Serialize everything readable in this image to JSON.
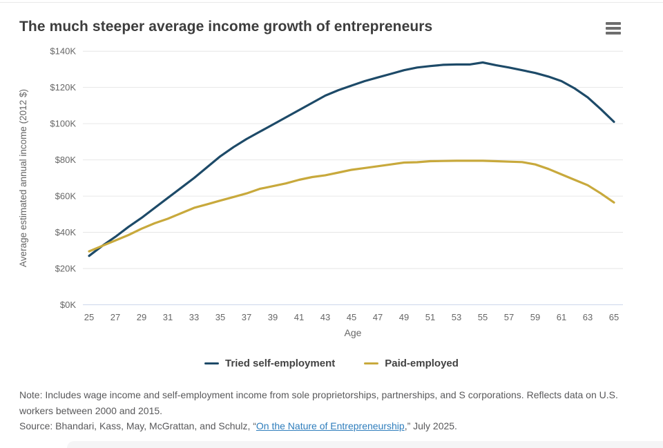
{
  "header": {
    "title": "The much steeper average income growth of entrepreneurs",
    "menu_icon": "hamburger-menu-icon"
  },
  "chart_data": {
    "type": "line",
    "title": "The much steeper average income growth of entrepreneurs",
    "xlabel": "Age",
    "ylabel": "Average estimated annual income (2012 $)",
    "xlim": [
      25,
      65
    ],
    "ylim_usd_thousands": [
      0,
      140
    ],
    "grid": "horizontal",
    "legend_position": "bottom",
    "x_ticks": [
      25,
      27,
      29,
      31,
      33,
      35,
      37,
      39,
      41,
      43,
      45,
      47,
      49,
      51,
      53,
      55,
      57,
      59,
      61,
      63,
      65
    ],
    "y_ticks_usd_thousands": [
      0,
      20,
      40,
      60,
      80,
      100,
      120,
      140
    ],
    "y_tick_prefix": "$",
    "y_tick_suffix": "K",
    "x": [
      25,
      26,
      27,
      28,
      29,
      30,
      31,
      32,
      33,
      34,
      35,
      36,
      37,
      38,
      39,
      40,
      41,
      42,
      43,
      44,
      45,
      46,
      47,
      48,
      49,
      50,
      51,
      52,
      53,
      54,
      55,
      56,
      57,
      58,
      59,
      60,
      61,
      62,
      63,
      64,
      65
    ],
    "series": [
      {
        "name": "Tried self-employment",
        "color": "#1d4a68",
        "values_usd_thousands": [
          27,
          32.5,
          37.5,
          43,
          48,
          53.5,
          59,
          64.5,
          70,
          76,
          82,
          87,
          91.5,
          95.5,
          99.5,
          103.5,
          107.5,
          111.5,
          115.5,
          118.5,
          121,
          123.5,
          125.5,
          127.5,
          129.5,
          131,
          131.8,
          132.5,
          132.7,
          132.7,
          133.8,
          132.3,
          131,
          129.5,
          128,
          126,
          123.5,
          119.5,
          114.5,
          108,
          101
        ]
      },
      {
        "name": "Paid-employed",
        "color": "#c8a93c",
        "values_usd_thousands": [
          29.5,
          32.5,
          35.5,
          38.5,
          42,
          45,
          47.5,
          50.5,
          53.5,
          55.5,
          57.5,
          59.5,
          61.5,
          64,
          65.5,
          67,
          69,
          70.5,
          71.5,
          73,
          74.5,
          75.5,
          76.5,
          77.5,
          78.5,
          78.7,
          79.3,
          79.4,
          79.5,
          79.5,
          79.5,
          79.3,
          79,
          78.8,
          77.5,
          75,
          72,
          69,
          66,
          61.5,
          56.5
        ]
      }
    ],
    "colors": {
      "gridline": "#e6e6e6",
      "axis_line": "#ccd6eb",
      "tick_label": "#666666",
      "axis_title": "#666666"
    }
  },
  "footer": {
    "note": "Note: Includes wage income and self-employment income from sole proprietorships, partnerships, and S corporations. Reflects data on U.S. workers between 2000 and 2015.",
    "source_prefix": "Source: Bhandari, Kass, May, McGrattan, and Schulz, “",
    "source_link": "On the Nature of Entrepreneurship",
    "source_suffix": ",” July 2025."
  }
}
